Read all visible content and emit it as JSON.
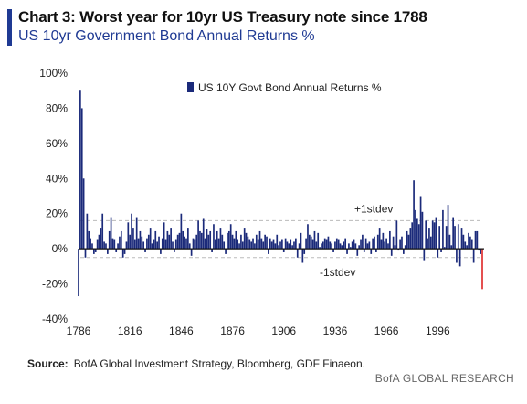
{
  "header": {
    "title": "Chart 3: Worst year for 10yr US Treasury note since 1788",
    "subtitle": "US 10yr Government Bond Annual Returns %"
  },
  "footer": {
    "source_label": "Source:",
    "source_text": "BofA Global Investment Strategy, Bloomberg, GDF Finaeon.",
    "brand": "BofA GLOBAL RESEARCH"
  },
  "colors": {
    "bar": "#1b2a7a",
    "highlight": "#e03030",
    "accent": "#1f3a93",
    "stdev_line": "#bbbbbb"
  },
  "chart_data": {
    "type": "bar",
    "title": "Chart 3: Worst year for 10yr US Treasury note since 1788",
    "subtitle": "US 10yr Government Bond Annual Returns %",
    "series": [
      {
        "name": "US 10Y Govt Bond Annual Returns %"
      }
    ],
    "legend_position": "top-center",
    "ylim": [
      -40,
      100
    ],
    "y_ticks": [
      "100%",
      "80%",
      "60%",
      "40%",
      "20%",
      "0%",
      "-20%",
      "-40%"
    ],
    "y_tick_values": [
      100,
      80,
      60,
      40,
      20,
      0,
      -20,
      -40
    ],
    "x_ticks": [
      "1786",
      "1816",
      "1846",
      "1876",
      "1906",
      "1936",
      "1966",
      "1996"
    ],
    "x_tick_values": [
      1786,
      1816,
      1846,
      1876,
      1906,
      1936,
      1966,
      1996
    ],
    "xlim": [
      1786,
      2022
    ],
    "reference_lines": [
      {
        "label": "+1stdev",
        "value": 16
      },
      {
        "label": "-1stdev",
        "value": -5
      }
    ],
    "highlight": {
      "year": 2022,
      "value": -23
    },
    "x": [
      1786,
      1787,
      1788,
      1789,
      1790,
      1791,
      1792,
      1793,
      1794,
      1795,
      1796,
      1797,
      1798,
      1799,
      1800,
      1801,
      1802,
      1803,
      1804,
      1805,
      1806,
      1807,
      1808,
      1809,
      1810,
      1811,
      1812,
      1813,
      1814,
      1815,
      1816,
      1817,
      1818,
      1819,
      1820,
      1821,
      1822,
      1823,
      1824,
      1825,
      1826,
      1827,
      1828,
      1829,
      1830,
      1831,
      1832,
      1833,
      1834,
      1835,
      1836,
      1837,
      1838,
      1839,
      1840,
      1841,
      1842,
      1843,
      1844,
      1845,
      1846,
      1847,
      1848,
      1849,
      1850,
      1851,
      1852,
      1853,
      1854,
      1855,
      1856,
      1857,
      1858,
      1859,
      1860,
      1861,
      1862,
      1863,
      1864,
      1865,
      1866,
      1867,
      1868,
      1869,
      1870,
      1871,
      1872,
      1873,
      1874,
      1875,
      1876,
      1877,
      1878,
      1879,
      1880,
      1881,
      1882,
      1883,
      1884,
      1885,
      1886,
      1887,
      1888,
      1889,
      1890,
      1891,
      1892,
      1893,
      1894,
      1895,
      1896,
      1897,
      1898,
      1899,
      1900,
      1901,
      1902,
      1903,
      1904,
      1905,
      1906,
      1907,
      1908,
      1909,
      1910,
      1911,
      1912,
      1913,
      1914,
      1915,
      1916,
      1917,
      1918,
      1919,
      1920,
      1921,
      1922,
      1923,
      1924,
      1925,
      1926,
      1927,
      1928,
      1929,
      1930,
      1931,
      1932,
      1933,
      1934,
      1935,
      1936,
      1937,
      1938,
      1939,
      1940,
      1941,
      1942,
      1943,
      1944,
      1945,
      1946,
      1947,
      1948,
      1949,
      1950,
      1951,
      1952,
      1953,
      1954,
      1955,
      1956,
      1957,
      1958,
      1959,
      1960,
      1961,
      1962,
      1963,
      1964,
      1965,
      1966,
      1967,
      1968,
      1969,
      1970,
      1971,
      1972,
      1973,
      1974,
      1975,
      1976,
      1977,
      1978,
      1979,
      1980,
      1981,
      1982,
      1983,
      1984,
      1985,
      1986,
      1987,
      1988,
      1989,
      1990,
      1991,
      1992,
      1993,
      1994,
      1995,
      1996,
      1997,
      1998,
      1999,
      2000,
      2001,
      2002,
      2003,
      2004,
      2005,
      2006,
      2007,
      2008,
      2009,
      2010,
      2011,
      2012,
      2013,
      2014,
      2015,
      2016,
      2017,
      2018,
      2019,
      2020,
      2021,
      2022
    ],
    "values": [
      -27,
      90,
      80,
      40,
      -5,
      20,
      10,
      6,
      3,
      -3,
      -2,
      5,
      8,
      12,
      20,
      4,
      3,
      -3,
      10,
      18,
      6,
      5,
      -2,
      3,
      7,
      10,
      -5,
      -3,
      4,
      15,
      8,
      20,
      12,
      5,
      18,
      6,
      10,
      7,
      4,
      -2,
      6,
      8,
      12,
      3,
      5,
      10,
      4,
      7,
      -3,
      6,
      15,
      5,
      10,
      8,
      12,
      4,
      -2,
      5,
      8,
      9,
      20,
      10,
      7,
      6,
      12,
      3,
      -4,
      6,
      5,
      8,
      16,
      10,
      9,
      17,
      6,
      11,
      8,
      10,
      -2,
      14,
      5,
      10,
      6,
      12,
      8,
      4,
      -3,
      9,
      10,
      14,
      8,
      6,
      10,
      5,
      3,
      8,
      4,
      12,
      9,
      7,
      5,
      4,
      6,
      3,
      8,
      5,
      10,
      6,
      4,
      8,
      7,
      -3,
      6,
      4,
      5,
      3,
      8,
      2,
      4,
      5,
      -2,
      6,
      4,
      3,
      5,
      2,
      4,
      6,
      -5,
      3,
      9,
      -8,
      -3,
      6,
      14,
      8,
      7,
      5,
      10,
      4,
      9,
      1,
      3,
      4,
      6,
      5,
      7,
      4,
      3,
      -2,
      4,
      6,
      5,
      3,
      2,
      4,
      6,
      -3,
      3,
      1,
      4,
      5,
      3,
      -4,
      2,
      5,
      8,
      -2,
      6,
      3,
      4,
      -3,
      6,
      7,
      -2,
      8,
      12,
      5,
      9,
      4,
      6,
      3,
      10,
      -4,
      7,
      2,
      16,
      -1,
      5,
      7,
      -3,
      2,
      10,
      8,
      12,
      15,
      39,
      22,
      17,
      14,
      30,
      21,
      -7,
      16,
      6,
      12,
      7,
      16,
      15,
      18,
      -5,
      13,
      -2,
      22,
      1,
      13,
      25,
      8,
      2,
      18,
      13,
      -8,
      14,
      -10,
      12,
      8,
      4,
      2,
      9,
      7,
      5,
      -8,
      10,
      10,
      -1,
      -3,
      -23
    ]
  }
}
